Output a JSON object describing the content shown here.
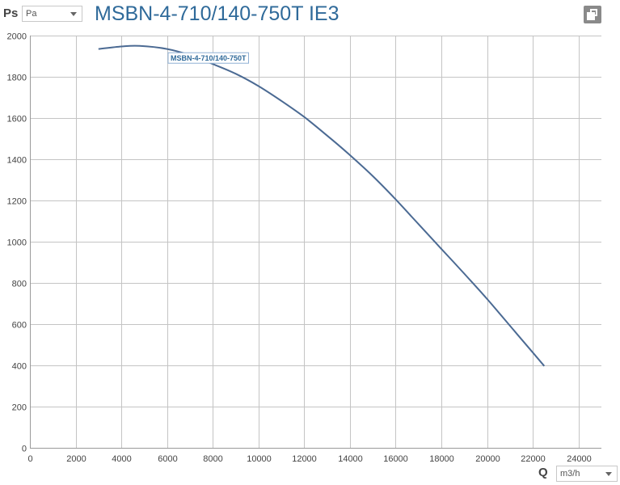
{
  "header": {
    "y_axis_symbol": "Ps",
    "y_unit_select": {
      "value": "Pa"
    },
    "title": "MSBN-4-710/140-750T IE3",
    "window_icon": "restore-window-icon"
  },
  "footer": {
    "x_axis_symbol": "Q",
    "x_unit_select": {
      "value": "m3/h"
    }
  },
  "colors": {
    "title": "#2f6a9a",
    "series": "#4b6a93",
    "grid": "#c4c4c4"
  },
  "chart_data": {
    "type": "line",
    "title": "MSBN-4-710/140-750T IE3",
    "xlabel": "Q",
    "ylabel": "Ps",
    "x_unit": "m3/h",
    "y_unit": "Pa",
    "xlim": [
      0,
      25000
    ],
    "ylim": [
      0,
      2000
    ],
    "x_ticks": [
      0,
      2000,
      4000,
      6000,
      8000,
      10000,
      12000,
      14000,
      16000,
      18000,
      20000,
      22000,
      24000
    ],
    "y_ticks": [
      0,
      200,
      400,
      600,
      800,
      1000,
      1200,
      1400,
      1600,
      1800,
      2000
    ],
    "grid": true,
    "series": [
      {
        "name": "MSBN-4-710/140-750T",
        "x": [
          3000,
          4000,
          4800,
          6000,
          7000,
          8000,
          9000,
          10000,
          11000,
          12000,
          13000,
          14000,
          15000,
          16000,
          17000,
          18000,
          19000,
          20000,
          21000,
          22000,
          22500
        ],
        "y": [
          1935,
          1947,
          1950,
          1935,
          1905,
          1862,
          1815,
          1755,
          1683,
          1605,
          1515,
          1420,
          1318,
          1205,
          1085,
          965,
          845,
          722,
          592,
          462,
          397
        ]
      }
    ]
  }
}
